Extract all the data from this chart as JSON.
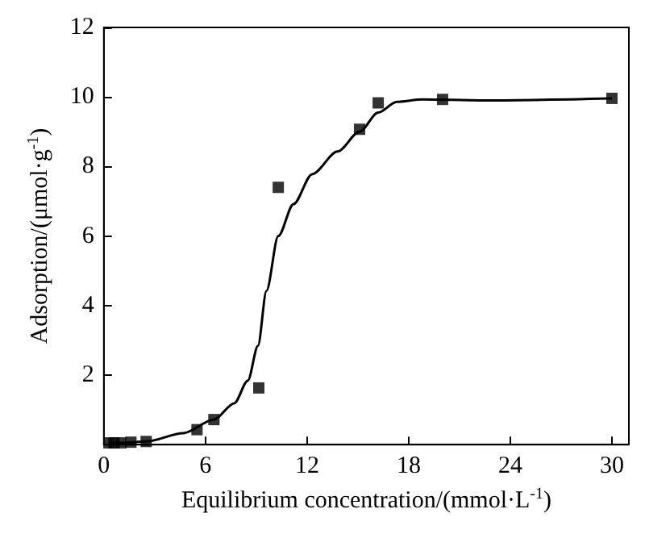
{
  "chart_data": {
    "type": "scatter",
    "xlabel": "Equilibrium concentration/(mmol·L$^{-1}$)",
    "ylabel": "Adsorption/(μmol·g$^{-1}$)",
    "xlim": [
      0,
      31
    ],
    "xticks": [
      0,
      6,
      12,
      18,
      24,
      30
    ],
    "ylim": [
      0,
      12
    ],
    "yticks": [
      {
        "value": 0,
        "label": null
      },
      2,
      4,
      6,
      8,
      10,
      12
    ],
    "grid": false,
    "series": [
      {
        "marker": "square",
        "color": "#000000",
        "x": [
          0.3,
          0.6,
          1.0,
          1.6,
          2.5,
          5.5,
          6.5,
          9.15,
          10.3,
          15.1,
          16.2,
          20,
          30
        ],
        "values": [
          0.05,
          0.05,
          0.05,
          0.07,
          0.09,
          0.43,
          0.72,
          1.63,
          7.4,
          9.07,
          9.83,
          9.93,
          9.96
        ]
      },
      {
        "type": "line",
        "marker": "none",
        "line_style": "solid",
        "color": "#000000",
        "x": [
          0.3,
          1.0,
          2.5,
          4.7,
          6.5,
          7.7,
          8.5,
          9.1,
          9.6,
          10.3,
          11.2,
          12.3,
          13.8,
          15.1,
          16.2,
          17.3,
          18.8,
          22.3,
          30
        ],
        "values": [
          0.05,
          0.05,
          0.09,
          0.33,
          0.72,
          1.19,
          1.84,
          2.84,
          4.42,
          6.0,
          6.92,
          7.78,
          8.43,
          9.0,
          9.55,
          9.86,
          9.93,
          9.9,
          9.96
        ]
      }
    ]
  }
}
